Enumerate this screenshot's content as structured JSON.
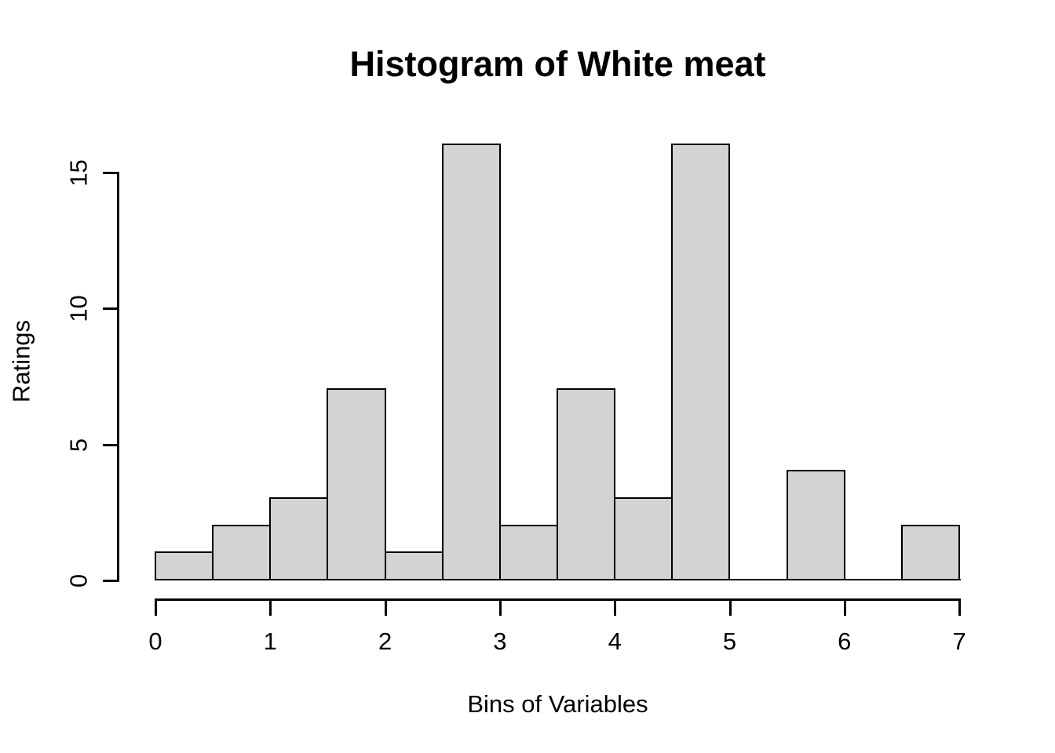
{
  "chart_data": {
    "type": "bar",
    "subtype": "histogram",
    "title": "Histogram of White meat",
    "xlabel": "Bins of Variables",
    "ylabel": "Ratings",
    "bin_edges": [
      0,
      0.5,
      1,
      1.5,
      2,
      2.5,
      3,
      3.5,
      4,
      4.5,
      5,
      5.5,
      6,
      6.5,
      7
    ],
    "counts": [
      1,
      2,
      3,
      7,
      1,
      16,
      2,
      7,
      3,
      16,
      0,
      4,
      0,
      2
    ],
    "x_ticks": [
      0,
      1,
      2,
      3,
      4,
      5,
      6,
      7
    ],
    "x_tick_labels": [
      "0",
      "1",
      "2",
      "3",
      "4",
      "5",
      "6",
      "7"
    ],
    "y_ticks": [
      0,
      5,
      10,
      15
    ],
    "y_tick_labels": [
      "0",
      "5",
      "10",
      "15"
    ],
    "xlim": [
      0,
      7
    ],
    "ylim": [
      0,
      16
    ],
    "grid": false,
    "legend": "none",
    "bar_fill": "#d3d3d3",
    "bar_stroke": "#000000",
    "axis_color": "#000000",
    "text_color": "#000000",
    "background": "#ffffff"
  }
}
